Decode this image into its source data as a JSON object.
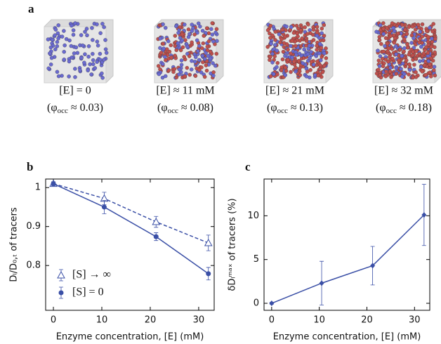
{
  "panel_a": {
    "label": "a",
    "captions": [
      {
        "line1": "[E] = 0",
        "open": "(φ",
        "sub": "occ",
        "rest": " ≈ 0.03)"
      },
      {
        "line1": "[E] ≈ 11 mM",
        "open": "(φ",
        "sub": "occ",
        "rest": " ≈ 0.08)"
      },
      {
        "line1": "[E] ≈ 21 mM",
        "open": "(φ",
        "sub": "occ",
        "rest": " ≈ 0.13)"
      },
      {
        "line1": "[E] ≈ 32 mM",
        "open": "(φ",
        "sub": "occ",
        "rest": " ≈ 0.18)"
      }
    ]
  },
  "chart_data": [
    {
      "type": "line",
      "panel_label": "b",
      "xlabel": "Enzyme concentration, [E] (mM)",
      "ylabel": "Dₗ/D₀,ₜ of tracers",
      "x": [
        0,
        10.5,
        21.2,
        32
      ],
      "series": [
        {
          "name": "[S] → ∞",
          "color": "#3a4fa6",
          "marker": "triangle",
          "linestyle": "dashed",
          "values": [
            1.01,
            0.972,
            0.912,
            0.858
          ],
          "errors": [
            0.005,
            0.016,
            0.014,
            0.02
          ]
        },
        {
          "name": "[S] = 0",
          "color": "#3a4fa6",
          "marker": "circle",
          "linestyle": "solid",
          "values": [
            1.01,
            0.95,
            0.874,
            0.779
          ],
          "errors": [
            0.005,
            0.017,
            0.01,
            0.016
          ]
        }
      ],
      "xlim": [
        -1.6,
        33.2
      ],
      "ylim": [
        0.685,
        1.022
      ],
      "xticks": [
        0,
        10,
        20,
        30
      ],
      "yticks": [
        0.8,
        0.9,
        1
      ],
      "legend": "lower left",
      "grid": false
    },
    {
      "type": "line",
      "panel_label": "c",
      "xlabel": "Enzyme concentration, [E] (mM)",
      "ylabel": "δDₗᵐᵃˣ of tracers (%)",
      "x": [
        0,
        10.5,
        21.2,
        32
      ],
      "series": [
        {
          "color": "#3a4fa6",
          "marker": "diamond",
          "linestyle": "solid",
          "values": [
            0,
            2.3,
            4.3,
            10.1
          ],
          "errors": [
            0.1,
            2.5,
            2.2,
            3.5
          ]
        }
      ],
      "xlim": [
        -1.6,
        33.2
      ],
      "ylim": [
        -0.8,
        14.2
      ],
      "xticks": [
        0,
        10,
        20,
        30
      ],
      "yticks": [
        0,
        5,
        10
      ],
      "grid": false
    }
  ]
}
